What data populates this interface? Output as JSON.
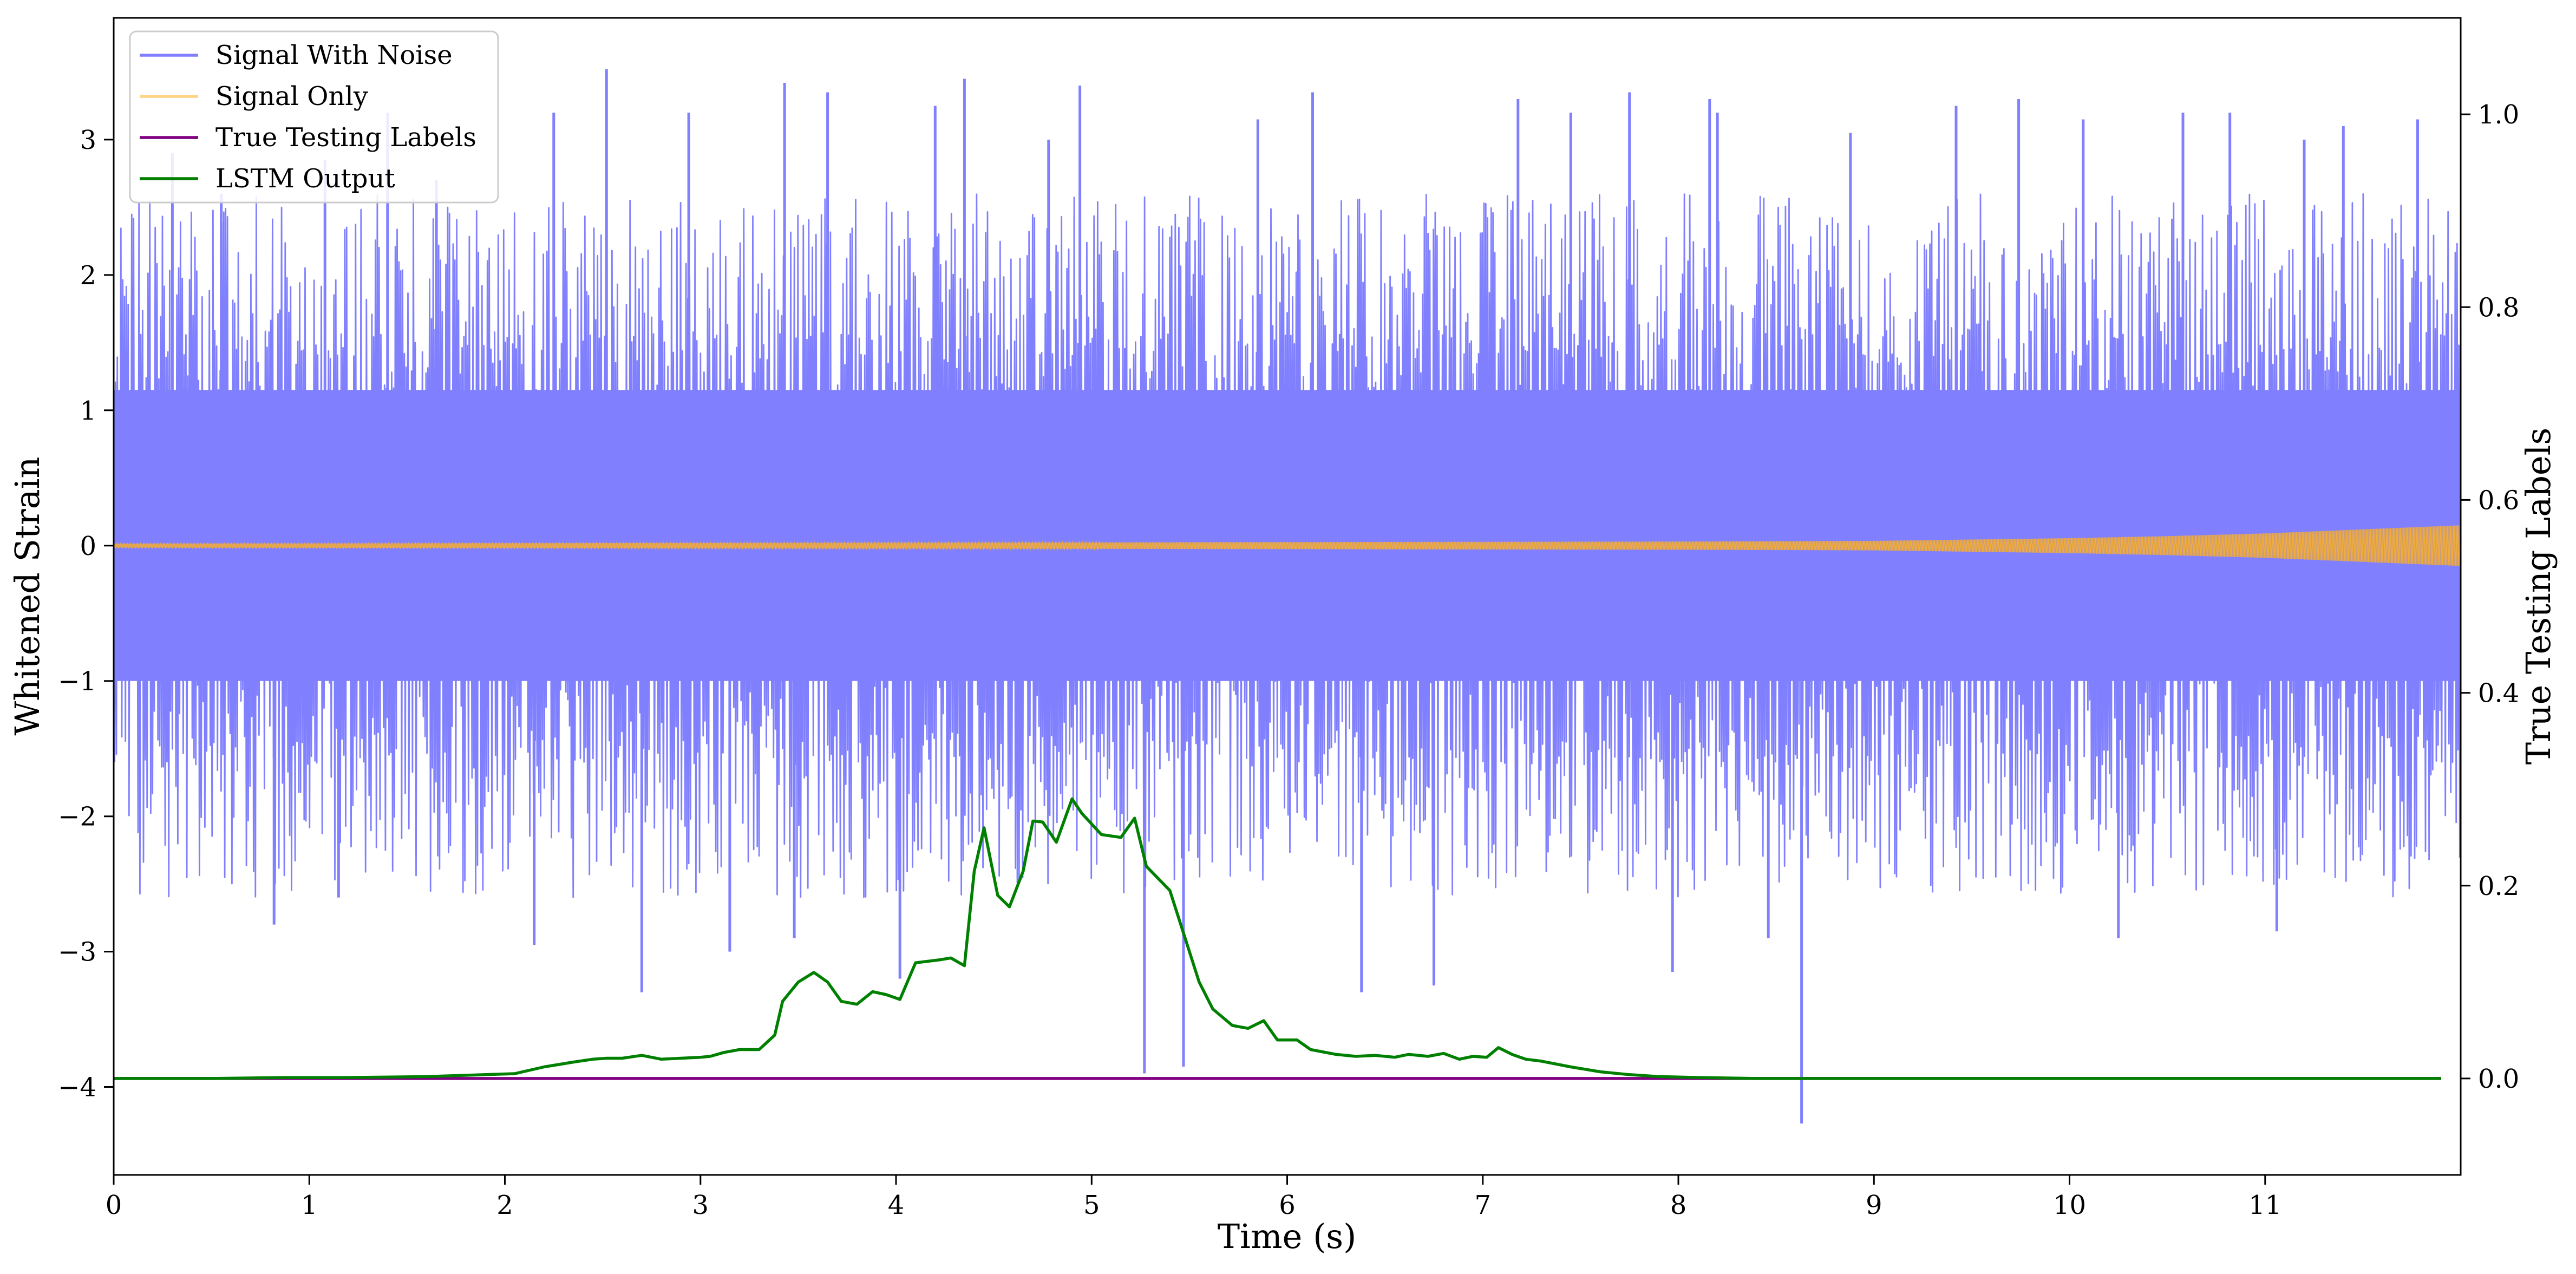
{
  "chart_data": {
    "type": "line",
    "title": "",
    "xlabel": "Time (s)",
    "ylabel": "Whitened Strain",
    "y2label": "True Testing Labels",
    "xlim": [
      0,
      12
    ],
    "ylim": [
      -4.65,
      3.9
    ],
    "y2lim": [
      -0.1,
      1.1
    ],
    "x_ticks": [
      0,
      1,
      2,
      3,
      4,
      5,
      6,
      7,
      8,
      9,
      10,
      11
    ],
    "y_ticks": [
      -4,
      -3,
      -2,
      -1,
      0,
      1,
      2,
      3
    ],
    "y2_ticks": [
      0.0,
      0.2,
      0.4,
      0.6,
      0.8,
      1.0
    ],
    "x_tick_labels": [
      "0",
      "1",
      "2",
      "3",
      "4",
      "5",
      "6",
      "7",
      "8",
      "9",
      "10",
      "11"
    ],
    "y_tick_labels": [
      "−4",
      "−3",
      "−2",
      "−1",
      "0",
      "1",
      "2",
      "3"
    ],
    "y2_tick_labels": [
      "0.0",
      "0.2",
      "0.4",
      "0.6",
      "0.8",
      "1.0"
    ],
    "grid": false,
    "legend_position": "top-left",
    "series": [
      {
        "name": "Signal With Noise",
        "axis": "left",
        "color": "#8080ff",
        "core_band": [
          -1.0,
          1.15
        ],
        "typical_peak_range": [
          1.4,
          2.6
        ],
        "typical_trough_range": [
          -2.6,
          -1.4
        ],
        "spikes": [
          {
            "x": 0.3,
            "y": 2.9
          },
          {
            "x": 0.55,
            "y": 2.6
          },
          {
            "x": 0.82,
            "y": -2.8
          },
          {
            "x": 1.08,
            "y": 2.85
          },
          {
            "x": 1.15,
            "y": -2.6
          },
          {
            "x": 1.4,
            "y": 3.2
          },
          {
            "x": 1.65,
            "y": 2.7
          },
          {
            "x": 2.15,
            "y": -2.95
          },
          {
            "x": 2.25,
            "y": 3.2
          },
          {
            "x": 2.52,
            "y": 3.52
          },
          {
            "x": 2.7,
            "y": -3.3
          },
          {
            "x": 2.94,
            "y": 3.2
          },
          {
            "x": 3.15,
            "y": -3.0
          },
          {
            "x": 3.43,
            "y": 3.42
          },
          {
            "x": 3.48,
            "y": -2.9
          },
          {
            "x": 3.65,
            "y": 3.35
          },
          {
            "x": 4.02,
            "y": -3.2
          },
          {
            "x": 4.2,
            "y": 3.25
          },
          {
            "x": 4.35,
            "y": 3.45
          },
          {
            "x": 4.78,
            "y": 3.0
          },
          {
            "x": 4.94,
            "y": 3.4
          },
          {
            "x": 5.27,
            "y": -3.9
          },
          {
            "x": 5.47,
            "y": -3.85
          },
          {
            "x": 5.85,
            "y": 3.15
          },
          {
            "x": 6.13,
            "y": 3.35
          },
          {
            "x": 6.38,
            "y": -3.3
          },
          {
            "x": 6.75,
            "y": -3.25
          },
          {
            "x": 7.18,
            "y": 3.3
          },
          {
            "x": 7.45,
            "y": 3.2
          },
          {
            "x": 7.75,
            "y": 3.35
          },
          {
            "x": 7.97,
            "y": -3.15
          },
          {
            "x": 8.16,
            "y": 3.3
          },
          {
            "x": 8.2,
            "y": 3.2
          },
          {
            "x": 8.46,
            "y": -2.9
          },
          {
            "x": 8.63,
            "y": -4.27
          },
          {
            "x": 8.88,
            "y": 3.05
          },
          {
            "x": 9.42,
            "y": 3.25
          },
          {
            "x": 9.74,
            "y": 3.3
          },
          {
            "x": 10.07,
            "y": 3.15
          },
          {
            "x": 10.25,
            "y": -2.9
          },
          {
            "x": 10.58,
            "y": 3.2
          },
          {
            "x": 10.82,
            "y": 3.2
          },
          {
            "x": 11.06,
            "y": -2.85
          },
          {
            "x": 11.2,
            "y": 3.0
          },
          {
            "x": 11.4,
            "y": 3.1
          },
          {
            "x": 11.78,
            "y": 3.15
          }
        ]
      },
      {
        "name": "Signal Only",
        "axis": "left",
        "color": "#ffb020",
        "envelope": [
          {
            "x": 0,
            "amp": 0.015
          },
          {
            "x": 2,
            "amp": 0.018
          },
          {
            "x": 4,
            "amp": 0.022
          },
          {
            "x": 6,
            "amp": 0.026
          },
          {
            "x": 8,
            "amp": 0.03
          },
          {
            "x": 9,
            "amp": 0.035
          },
          {
            "x": 10,
            "amp": 0.055
          },
          {
            "x": 10.5,
            "amp": 0.07
          },
          {
            "x": 11,
            "amp": 0.09
          },
          {
            "x": 11.5,
            "amp": 0.12
          },
          {
            "x": 12,
            "amp": 0.15
          }
        ]
      },
      {
        "name": "True Testing Labels",
        "axis": "right",
        "color": "#800080",
        "x": [
          0,
          11.9
        ],
        "y": [
          0.0,
          0.0
        ]
      },
      {
        "name": "LSTM Output",
        "axis": "right",
        "color": "#008000",
        "x": [
          0,
          0.5,
          0.9,
          1.2,
          1.6,
          1.9,
          2.05,
          2.2,
          2.35,
          2.45,
          2.52,
          2.6,
          2.7,
          2.8,
          2.9,
          3.0,
          3.05,
          3.12,
          3.2,
          3.3,
          3.38,
          3.42,
          3.5,
          3.58,
          3.65,
          3.72,
          3.8,
          3.88,
          3.95,
          4.02,
          4.1,
          4.22,
          4.28,
          4.35,
          4.4,
          4.45,
          4.52,
          4.58,
          4.65,
          4.7,
          4.75,
          4.82,
          4.9,
          4.95,
          5.05,
          5.15,
          5.22,
          5.28,
          5.4,
          5.55,
          5.62,
          5.72,
          5.8,
          5.88,
          5.95,
          6.05,
          6.12,
          6.25,
          6.35,
          6.45,
          6.55,
          6.62,
          6.72,
          6.8,
          6.88,
          6.95,
          7.02,
          7.08,
          7.15,
          7.22,
          7.3,
          7.45,
          7.6,
          7.75,
          7.9,
          8.1,
          8.4,
          8.8,
          9.3,
          10.0,
          11.0,
          11.9
        ],
        "y": [
          0.0,
          0.0,
          0.001,
          0.001,
          0.002,
          0.004,
          0.005,
          0.012,
          0.017,
          0.02,
          0.021,
          0.021,
          0.024,
          0.02,
          0.021,
          0.022,
          0.023,
          0.027,
          0.03,
          0.03,
          0.045,
          0.08,
          0.1,
          0.11,
          0.1,
          0.08,
          0.077,
          0.09,
          0.087,
          0.082,
          0.12,
          0.123,
          0.125,
          0.117,
          0.215,
          0.26,
          0.19,
          0.178,
          0.215,
          0.267,
          0.266,
          0.245,
          0.29,
          0.275,
          0.253,
          0.25,
          0.27,
          0.22,
          0.195,
          0.1,
          0.072,
          0.055,
          0.052,
          0.06,
          0.04,
          0.04,
          0.03,
          0.025,
          0.023,
          0.024,
          0.022,
          0.025,
          0.023,
          0.026,
          0.02,
          0.023,
          0.022,
          0.032,
          0.025,
          0.02,
          0.018,
          0.012,
          0.007,
          0.004,
          0.002,
          0.001,
          0.0,
          0.0,
          0.0,
          0.0,
          0.0,
          0.0
        ]
      }
    ]
  }
}
